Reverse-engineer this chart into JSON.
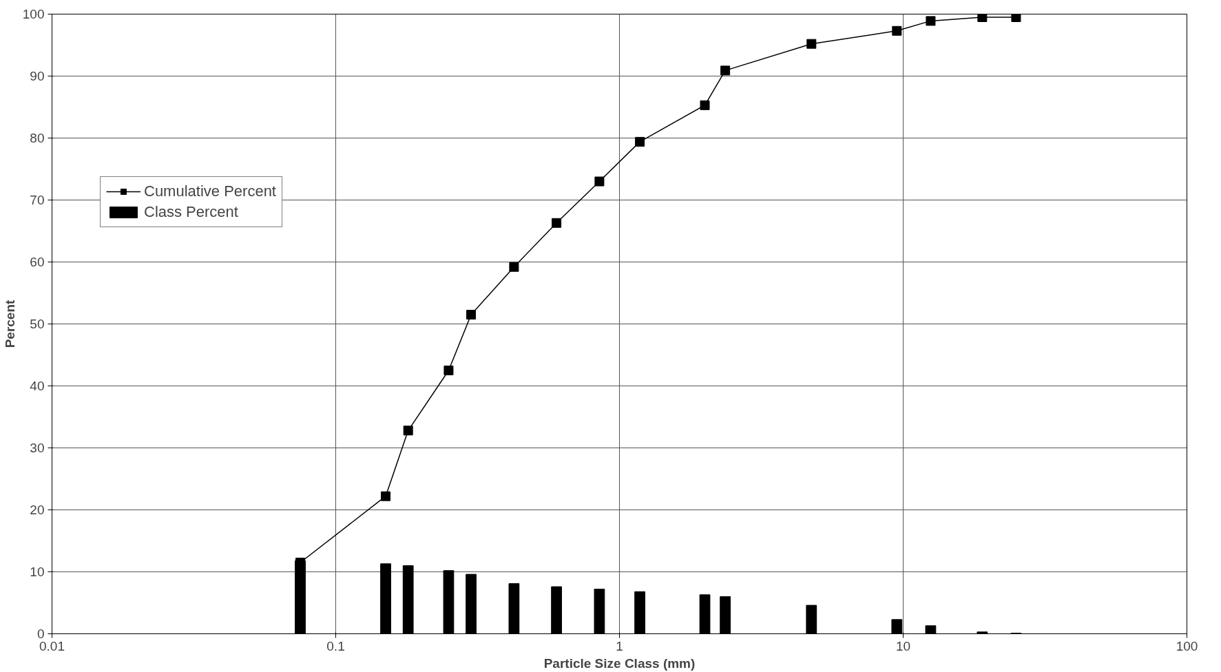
{
  "chart_data": {
    "type": "line",
    "xlabel": "Particle Size Class (mm)",
    "ylabel": "Percent",
    "log": "x",
    "xlim": [
      0.01,
      100
    ],
    "xticks": [
      0.01,
      0.1,
      1,
      10,
      100
    ],
    "ylim": [
      0,
      100
    ],
    "yticks": [
      0,
      10,
      20,
      30,
      40,
      50,
      60,
      70,
      80,
      90,
      100
    ],
    "grid": true,
    "legend": "left",
    "marker": "square",
    "line_style": "solid",
    "x": [
      0.075,
      0.15,
      0.18,
      0.25,
      0.3,
      0.425,
      0.6,
      0.85,
      1.18,
      2.0,
      2.36,
      4.75,
      9.5,
      12.5,
      19,
      25
    ],
    "series": [
      {
        "name": "Cumulative Percent",
        "color": "#000000",
        "values": [
          11.5,
          22.2,
          32.8,
          42.5,
          51.5,
          59.2,
          66.3,
          73.0,
          79.4,
          85.3,
          90.9,
          95.2,
          97.3,
          98.9,
          99.5,
          99.5
        ]
      },
      {
        "name": "Class Percent",
        "type": "bar",
        "color": "#000000",
        "values": [
          11.8,
          11.3,
          11.0,
          10.2,
          9.6,
          8.1,
          7.6,
          7.2,
          6.8,
          6.3,
          6.0,
          4.6,
          2.3,
          1.3,
          0.3,
          0.1
        ]
      }
    ]
  }
}
